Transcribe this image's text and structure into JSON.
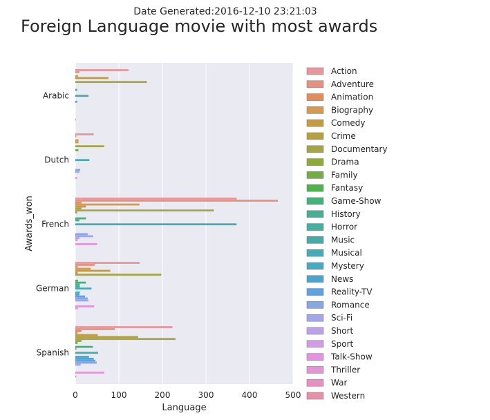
{
  "header": {
    "date_label": "Date Generated:2016-12-10 23:21:03"
  },
  "chart_data": {
    "type": "bar",
    "orientation": "horizontal",
    "title": "Foreign Language movie with most awards",
    "xlabel": "Language",
    "ylabel": "Awards_won",
    "xlim": [
      0,
      500
    ],
    "xticks": [
      0,
      100,
      200,
      300,
      400,
      500
    ],
    "grid": true,
    "legend_position": "right",
    "categories": [
      "Arabic",
      "Dutch",
      "French",
      "German",
      "Spanish"
    ],
    "series": [
      {
        "name": "Action",
        "color": "#e8959b",
        "values": [
          122,
          42,
          370,
          147,
          223
        ]
      },
      {
        "name": "Adventure",
        "color": "#e8907f",
        "values": [
          9,
          2,
          465,
          44,
          90
        ]
      },
      {
        "name": "Animation",
        "color": "#e08e5e",
        "values": [
          0,
          0,
          14,
          5,
          14
        ]
      },
      {
        "name": "Biography",
        "color": "#d59a4f",
        "values": [
          6,
          7,
          147,
          35,
          5
        ]
      },
      {
        "name": "Comedy",
        "color": "#c59a45",
        "values": [
          76,
          7,
          24,
          80,
          51
        ]
      },
      {
        "name": "Crime",
        "color": "#b5a040",
        "values": [
          0,
          0,
          14,
          5,
          144
        ]
      },
      {
        "name": "Documentary",
        "color": "#a5a545",
        "values": [
          164,
          66,
          318,
          197,
          230
        ]
      },
      {
        "name": "Drama",
        "color": "#8fa93c",
        "values": [
          0,
          0,
          4,
          0,
          14
        ]
      },
      {
        "name": "Family",
        "color": "#73ae45",
        "values": [
          0,
          7,
          0,
          0,
          5
        ]
      },
      {
        "name": "Fantasy",
        "color": "#4fb24f",
        "values": [
          0,
          0,
          0,
          6,
          0
        ]
      },
      {
        "name": "Game-Show",
        "color": "#44b07a",
        "values": [
          4,
          0,
          24,
          24,
          40
        ]
      },
      {
        "name": "History",
        "color": "#45af93",
        "values": [
          0,
          0,
          9,
          10,
          2
        ]
      },
      {
        "name": "Horror",
        "color": "#47ad9f",
        "values": [
          0,
          0,
          0,
          10,
          0
        ]
      },
      {
        "name": "Music",
        "color": "#44aba9",
        "values": [
          30,
          32,
          370,
          37,
          52
        ]
      },
      {
        "name": "Musical",
        "color": "#47aab4",
        "values": [
          0,
          0,
          0,
          0,
          0
        ]
      },
      {
        "name": "Mystery",
        "color": "#4aa8c2",
        "values": [
          0,
          0,
          0,
          10,
          31
        ]
      },
      {
        "name": "News",
        "color": "#4ba3d2",
        "values": [
          4,
          0,
          0,
          9,
          42
        ]
      },
      {
        "name": "Reality-TV",
        "color": "#5ea2e0",
        "values": [
          0,
          0,
          0,
          22,
          46
        ]
      },
      {
        "name": "Romance",
        "color": "#86a6e6",
        "values": [
          0,
          11,
          28,
          28,
          49
        ]
      },
      {
        "name": "Sci-Fi",
        "color": "#a3a7e9",
        "values": [
          0,
          9,
          41,
          30,
          12
        ]
      },
      {
        "name": "Short",
        "color": "#bba2e8",
        "values": [
          0,
          0,
          9,
          0,
          0
        ]
      },
      {
        "name": "Sport",
        "color": "#d29ce8",
        "values": [
          0,
          0,
          5,
          0,
          0
        ]
      },
      {
        "name": "Talk-Show",
        "color": "#e293e0",
        "values": [
          0,
          4,
          0,
          43,
          0
        ]
      },
      {
        "name": "Thriller",
        "color": "#e594d6",
        "values": [
          0,
          0,
          50,
          6,
          66
        ]
      },
      {
        "name": "War",
        "color": "#e690c3",
        "values": [
          0,
          0,
          0,
          0,
          0
        ]
      },
      {
        "name": "Western",
        "color": "#e68fa9",
        "values": [
          1,
          0,
          0,
          0,
          2
        ]
      }
    ]
  }
}
